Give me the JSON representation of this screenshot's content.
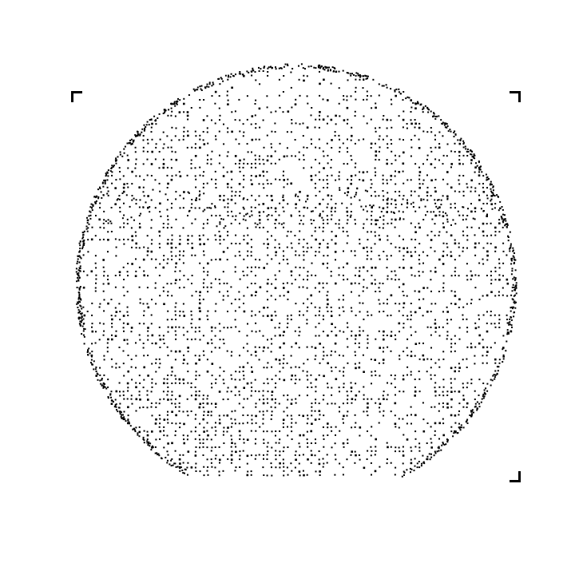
{
  "scale_label": "",
  "colors": {
    "background": "#ffffff",
    "defect": "#000000",
    "wafer_edge": "#000000"
  },
  "wafer": {
    "shape": "circle",
    "has_flat_bottom": true,
    "defect_style": "dense scattered black points across the wafer interior, denser along the rim and in the lower-left region"
  }
}
